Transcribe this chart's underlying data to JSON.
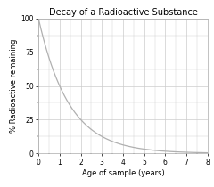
{
  "title": "Decay of a Radioactive Substance",
  "xlabel": "Age of sample (years)",
  "ylabel": "% Radioactive remaining",
  "xlim": [
    0,
    8
  ],
  "ylim": [
    0,
    100
  ],
  "xticks": [
    0,
    1,
    2,
    3,
    4,
    5,
    6,
    7,
    8
  ],
  "yticks": [
    0,
    25,
    50,
    75,
    100
  ],
  "half_life": 1.0,
  "line_color": "#b0b0b0",
  "bg_color": "#ffffff",
  "grid_color": "#cccccc",
  "title_fontsize": 7.0,
  "label_fontsize": 6.0,
  "tick_fontsize": 5.5,
  "x_minor_interval": 0.5,
  "y_minor_interval": 12.5
}
